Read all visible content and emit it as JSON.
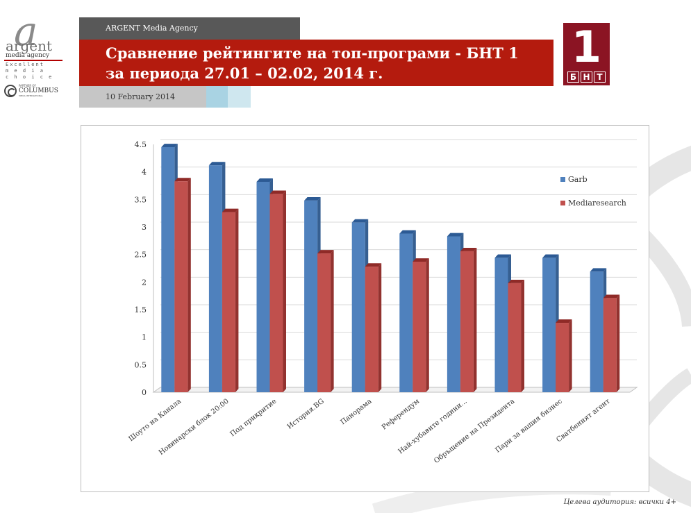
{
  "header": {
    "agency": "ARGENT  Media Agency",
    "title_line1": "Сравнение рейтингите на топ-програми - БНТ 1",
    "title_line2": "за периода 27.01 – 02.02, 2014 г.",
    "date": "10 February 2014"
  },
  "logo": {
    "letter": "a",
    "name": "argent",
    "sub": "media agency",
    "tagline1": "Excellent",
    "tagline2": "m e d i a",
    "tagline3": "c h o i c e",
    "partner_label": "PARTNER OF",
    "partner_name": "COLUMBUS",
    "partner_sub": "MEDIA INTERNATIONAL"
  },
  "bnt_logo": {
    "number": "1",
    "letters": [
      "Б",
      "Н",
      "Т"
    ]
  },
  "footer": {
    "audience": "Целева аудитория: всички 4+"
  },
  "colors": {
    "garb": "#4f81bd",
    "mediaresearch": "#c0504d",
    "title_red": "#b41b0e",
    "bnt_red": "#8b1423"
  },
  "chart_data": {
    "type": "bar",
    "title": "",
    "xlabel": "",
    "ylabel": "",
    "categories": [
      "Шоуто на Канала",
      "Новинарски блок 20:00",
      "Под прикритие",
      "История.BG",
      "Панорама",
      "Референдум",
      "Най-хубавите години...",
      "Обръщение на Президента",
      "Пари за вашия бизнес",
      "Сватбеният агент"
    ],
    "series": [
      {
        "name": "Garb",
        "values": [
          4.45,
          4.12,
          3.82,
          3.48,
          3.08,
          2.88,
          2.83,
          2.44,
          2.44,
          2.19
        ]
      },
      {
        "name": "Mediaresearch",
        "values": [
          3.83,
          3.27,
          3.6,
          2.52,
          2.28,
          2.37,
          2.56,
          1.98,
          1.26,
          1.71
        ]
      }
    ],
    "yticks": [
      "0",
      "0.5",
      "1",
      "1.5",
      "2",
      "2.5",
      "3",
      "3.5",
      "4",
      "4.5"
    ],
    "ylim": [
      0,
      4.5
    ],
    "legend_position": "right"
  }
}
